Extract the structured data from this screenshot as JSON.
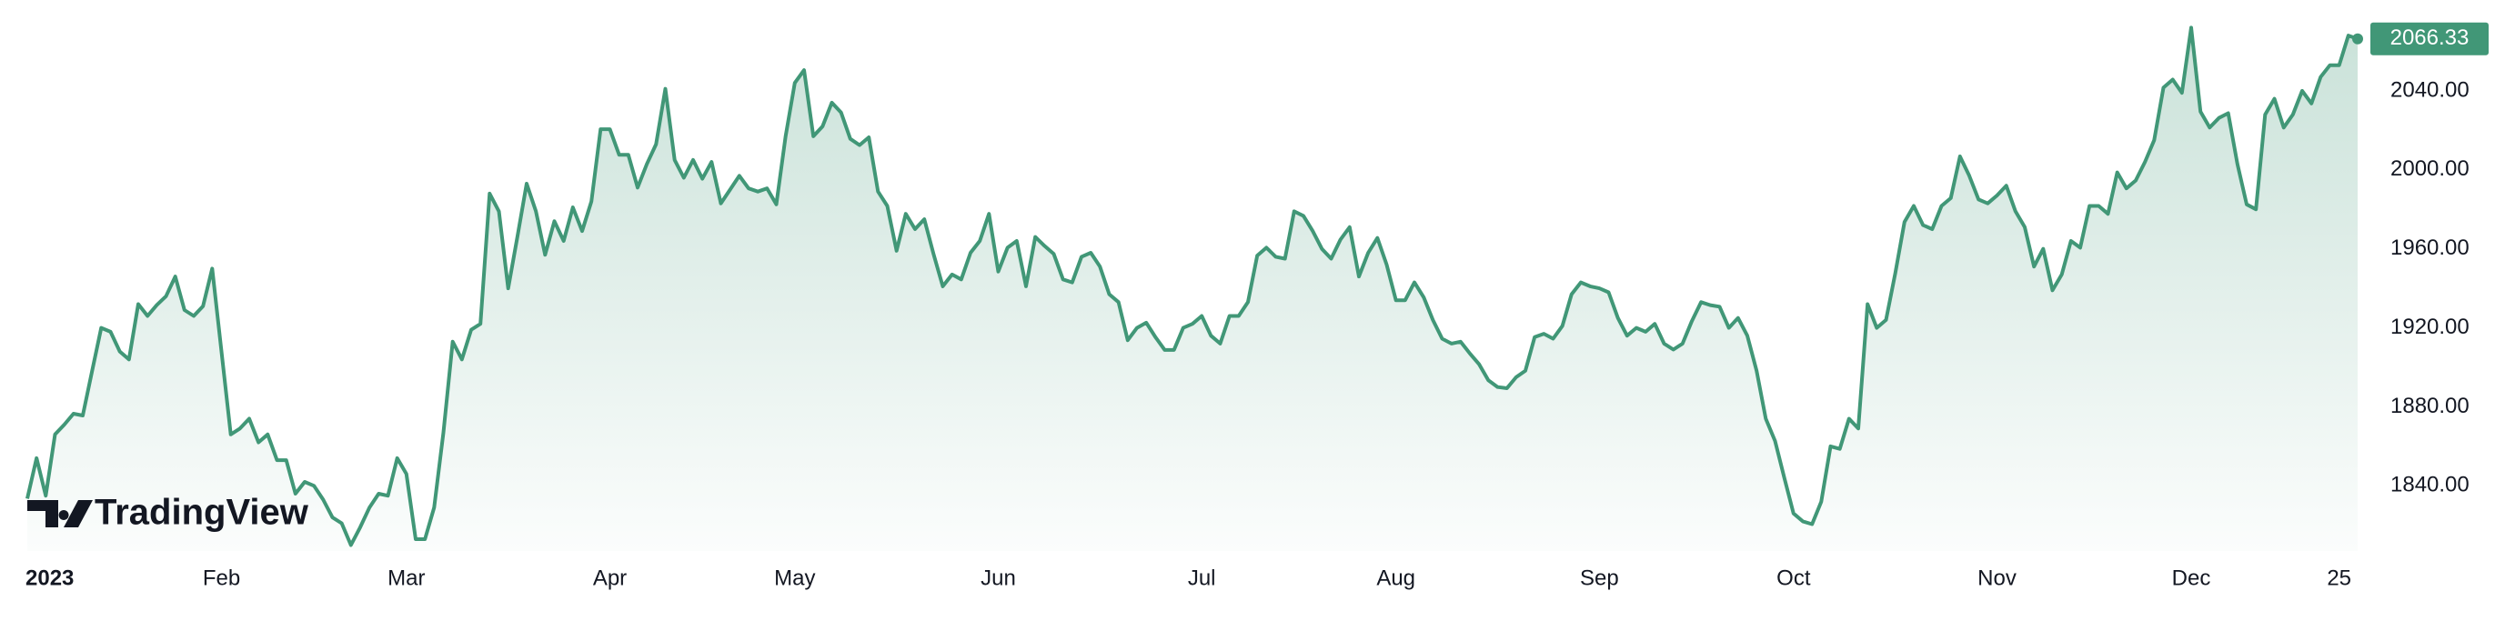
{
  "chart_data": {
    "type": "area",
    "watermark": "TradingView",
    "color": "#419777",
    "grid": false,
    "values": [
      1833.5,
      1854,
      1835,
      1866,
      1871,
      1876.5,
      1875.6,
      1898,
      1920,
      1918,
      1908,
      1904,
      1932,
      1926,
      1931.5,
      1936,
      1946,
      1929,
      1926,
      1931,
      1950,
      1908,
      1866,
      1869,
      1874,
      1862,
      1866,
      1853,
      1853,
      1836,
      1842,
      1840,
      1833,
      1824,
      1821,
      1810,
      1819,
      1829,
      1836,
      1835,
      1854,
      1846,
      1813,
      1813,
      1829,
      1867,
      1913,
      1904,
      1919,
      1922,
      1988,
      1979,
      1940,
      1966,
      1993,
      1979,
      1957,
      1974,
      1964,
      1981,
      1969,
      1984,
      2020.6,
      2020.6,
      2007.6,
      2007.6,
      1991,
      2003,
      2013,
      2041,
      2005,
      1996,
      2005,
      1995.5,
      2004,
      1983,
      1990,
      1997,
      1990.6,
      1989,
      1990.6,
      1982.5,
      2017,
      2044,
      2050.5,
      2017,
      2022,
      2034,
      2029,
      2015.7,
      2012.5,
      2016.5,
      1989,
      1981.7,
      1959,
      1977.7,
      1970,
      1975,
      1957.4,
      1941,
      1947,
      1944.5,
      1958,
      1964,
      1977.7,
      1948.5,
      1960.6,
      1964,
      1941,
      1966,
      1961.5,
      1957.4,
      1944.5,
      1943,
      1956,
      1958,
      1951,
      1937,
      1933,
      1913.7,
      1920,
      1922.6,
      1915.3,
      1908.8,
      1908.8,
      1920,
      1922,
      1926,
      1916,
      1912,
      1926,
      1926,
      1933,
      1956.6,
      1960.6,
      1956,
      1955,
      1979,
      1976.7,
      1969,
      1960,
      1955,
      1964.7,
      1971,
      1946,
      1958,
      1965.5,
      1952,
      1934,
      1934,
      1943,
      1935.5,
      1924,
      1914.5,
      1912,
      1913,
      1907,
      1901.5,
      1893.4,
      1890,
      1889.4,
      1895,
      1898.3,
      1915.3,
      1917,
      1914.5,
      1921,
      1937,
      1943,
      1941,
      1940,
      1938,
      1925,
      1916,
      1920,
      1918,
      1922,
      1912,
      1909,
      1912,
      1923.4,
      1933,
      1931.5,
      1930.7,
      1920,
      1925,
      1916,
      1898.3,
      1874,
      1862.7,
      1844,
      1826,
      1822,
      1820.6,
      1832,
      1860,
      1858.7,
      1874,
      1869,
      1932,
      1920,
      1924,
      1947.7,
      1973.6,
      1981.7,
      1972,
      1970,
      1981.7,
      1985.7,
      2006.8,
      1997,
      1985,
      1983,
      1987,
      1992,
      1979,
      1971,
      1951,
      1960,
      1939,
      1947,
      1964,
      1960.6,
      1981.7,
      1981.7,
      1977.7,
      1998.7,
      1990.6,
      1994.6,
      2004,
      2015,
      2041.6,
      2045.7,
      2039,
      2072,
      2029.5,
      2021.4,
      2026.3,
      2028.7,
      2003,
      1982.5,
      1980,
      2028,
      2036,
      2021.4,
      2028,
      2040,
      2033.6,
      2047,
      2053,
      2053,
      2068,
      2066.33
    ],
    "xlim": [
      0,
      252
    ],
    "xticks": [
      {
        "value": 0,
        "label": "2023"
      },
      {
        "value": 21,
        "label": "Feb"
      },
      {
        "value": 41,
        "label": "Mar"
      },
      {
        "value": 63,
        "label": "Apr"
      },
      {
        "value": 83,
        "label": "May"
      },
      {
        "value": 105,
        "label": "Jun"
      },
      {
        "value": 127,
        "label": "Jul"
      },
      {
        "value": 148,
        "label": "Aug"
      },
      {
        "value": 170,
        "label": "Sep"
      },
      {
        "value": 191,
        "label": "Oct"
      },
      {
        "value": 213,
        "label": "Nov"
      },
      {
        "value": 234,
        "label": "Dec"
      },
      {
        "value": 250,
        "label": "25"
      }
    ],
    "ylim": [
      1807,
      2086
    ],
    "yticks": [
      {
        "value": 1840,
        "label": "1840.00"
      },
      {
        "value": 1880,
        "label": "1880.00"
      },
      {
        "value": 1920,
        "label": "1920.00"
      },
      {
        "value": 1960,
        "label": "1960.00"
      },
      {
        "value": 2000,
        "label": "2000.00"
      },
      {
        "value": 2040,
        "label": "2040.00"
      }
    ]
  }
}
